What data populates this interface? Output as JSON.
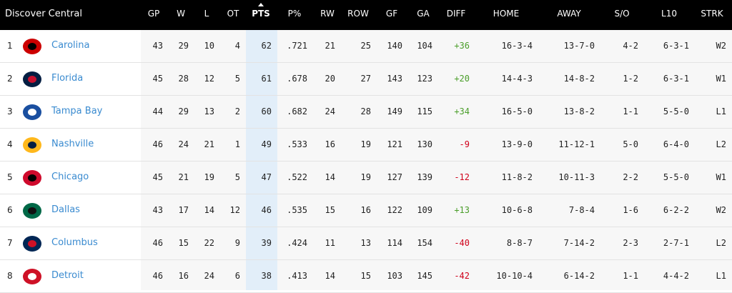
{
  "header": {
    "title": "Discover Central",
    "columns": [
      "GP",
      "W",
      "L",
      "OT",
      "PTS",
      "P%",
      "RW",
      "ROW",
      "GF",
      "GA",
      "DIFF",
      "HOME",
      "AWAY",
      "S/O",
      "L10",
      "STRK"
    ]
  },
  "table": {
    "rows": [
      {
        "rank": "1",
        "team": "Carolina",
        "stats": [
          "43",
          "29",
          "10",
          "4",
          "62",
          ".721",
          "21",
          "25",
          "140",
          "104",
          "+36",
          "16-3-4",
          "13-7-0",
          "4-2",
          "6-3-1",
          "W2"
        ]
      },
      {
        "rank": "2",
        "team": "Florida",
        "stats": [
          "45",
          "28",
          "12",
          "5",
          "61",
          ".678",
          "20",
          "27",
          "143",
          "123",
          "+20",
          "14-4-3",
          "14-8-2",
          "1-2",
          "6-3-1",
          "W1"
        ]
      },
      {
        "rank": "3",
        "team": "Tampa Bay",
        "stats": [
          "44",
          "29",
          "13",
          "2",
          "60",
          ".682",
          "24",
          "28",
          "149",
          "115",
          "+34",
          "16-5-0",
          "13-8-2",
          "1-1",
          "5-5-0",
          "L1"
        ]
      },
      {
        "rank": "4",
        "team": "Nashville",
        "stats": [
          "46",
          "24",
          "21",
          "1",
          "49",
          ".533",
          "16",
          "19",
          "121",
          "130",
          "-9",
          "13-9-0",
          "11-12-1",
          "5-0",
          "6-4-0",
          "L2"
        ]
      },
      {
        "rank": "5",
        "team": "Chicago",
        "stats": [
          "45",
          "21",
          "19",
          "5",
          "47",
          ".522",
          "14",
          "19",
          "127",
          "139",
          "-12",
          "11-8-2",
          "10-11-3",
          "2-2",
          "5-5-0",
          "W1"
        ]
      },
      {
        "rank": "6",
        "team": "Dallas",
        "stats": [
          "43",
          "17",
          "14",
          "12",
          "46",
          ".535",
          "15",
          "16",
          "122",
          "109",
          "+13",
          "10-6-8",
          "7-8-4",
          "1-6",
          "6-2-2",
          "W2"
        ]
      },
      {
        "rank": "7",
        "team": "Columbus",
        "stats": [
          "46",
          "15",
          "22",
          "9",
          "39",
          ".424",
          "11",
          "13",
          "114",
          "154",
          "-40",
          "8-8-7",
          "7-14-2",
          "2-3",
          "2-7-1",
          "L2"
        ]
      },
      {
        "rank": "8",
        "team": "Detroit",
        "stats": [
          "46",
          "16",
          "24",
          "6",
          "38",
          ".413",
          "14",
          "15",
          "103",
          "145",
          "-42",
          "10-10-4",
          "6-14-2",
          "1-1",
          "4-4-2",
          "L1"
        ]
      }
    ]
  }
}
